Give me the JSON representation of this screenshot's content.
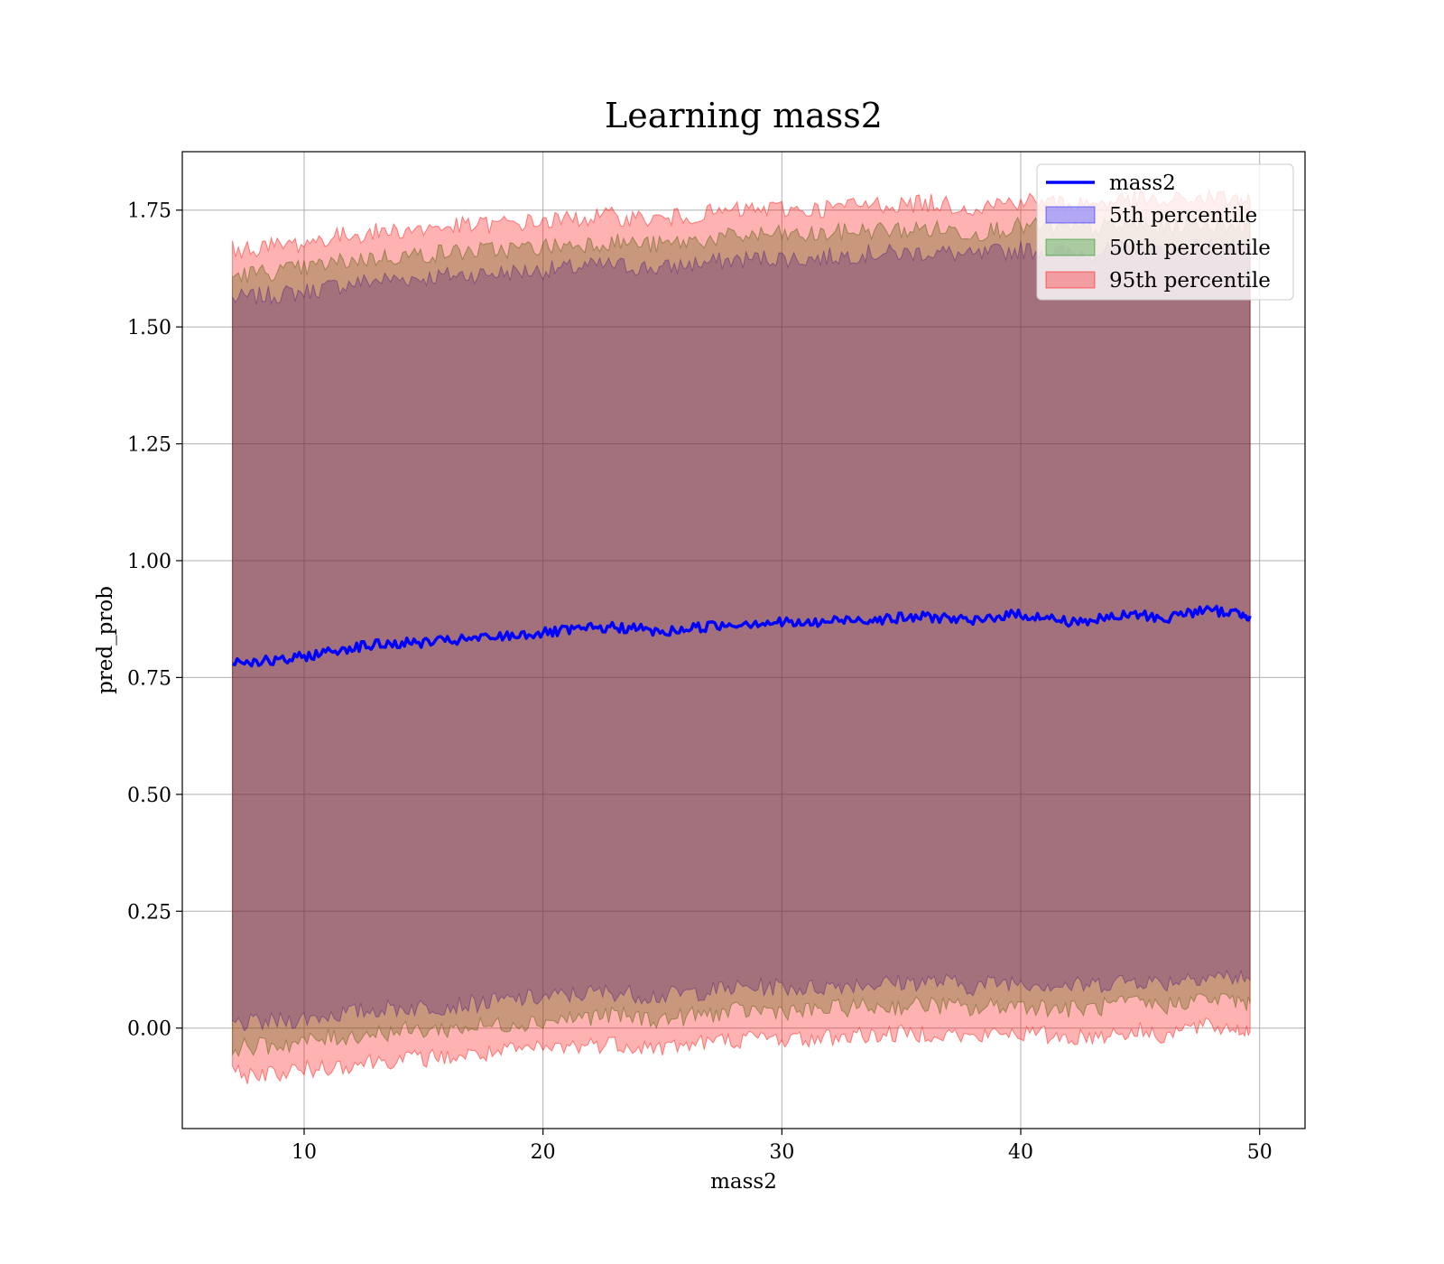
{
  "chart_data": {
    "type": "area",
    "title": "Learning mass2",
    "xlabel": "mass2",
    "ylabel": "pred_prob",
    "xlim": [
      4.9,
      51.9
    ],
    "ylim": [
      -0.215,
      1.875
    ],
    "xticks": [
      10,
      20,
      30,
      40,
      50
    ],
    "xtick_labels": [
      "10",
      "20",
      "30",
      "40",
      "50"
    ],
    "yticks": [
      0.0,
      0.25,
      0.5,
      0.75,
      1.0,
      1.25,
      1.5,
      1.75
    ],
    "ytick_labels": [
      "0.00",
      "0.25",
      "0.50",
      "0.75",
      "1.00",
      "1.25",
      "1.50",
      "1.75"
    ],
    "grid": true,
    "legend_placement": "upper right",
    "x": [
      7.0,
      8.0,
      9.0,
      10.0,
      11.0,
      12.0,
      13.0,
      14.0,
      15.0,
      16.0,
      17.0,
      18.0,
      19.0,
      20.0,
      21.0,
      22.0,
      23.0,
      24.0,
      25.0,
      26.0,
      27.0,
      28.0,
      29.0,
      30.0,
      31.0,
      32.0,
      33.0,
      34.0,
      35.0,
      36.0,
      37.0,
      38.0,
      39.0,
      40.0,
      41.0,
      42.0,
      43.0,
      44.0,
      45.0,
      46.0,
      47.0,
      48.0,
      49.0,
      49.6
    ],
    "series": [
      {
        "name": "mass2",
        "kind": "line",
        "color": "#0000ff",
        "values": [
          0.785,
          0.785,
          0.785,
          0.795,
          0.805,
          0.815,
          0.82,
          0.823,
          0.825,
          0.828,
          0.832,
          0.836,
          0.842,
          0.845,
          0.85,
          0.855,
          0.857,
          0.855,
          0.845,
          0.855,
          0.86,
          0.865,
          0.868,
          0.868,
          0.865,
          0.87,
          0.875,
          0.875,
          0.877,
          0.88,
          0.878,
          0.868,
          0.882,
          0.885,
          0.878,
          0.87,
          0.872,
          0.88,
          0.885,
          0.875,
          0.89,
          0.893,
          0.888,
          0.882
        ]
      },
      {
        "name": "5th percentile",
        "kind": "band",
        "color": "#0000ff",
        "upper": [
          1.56,
          1.565,
          1.57,
          1.575,
          1.585,
          1.593,
          1.6,
          1.603,
          1.605,
          1.61,
          1.612,
          1.615,
          1.618,
          1.621,
          1.625,
          1.63,
          1.632,
          1.628,
          1.625,
          1.633,
          1.638,
          1.643,
          1.647,
          1.648,
          1.645,
          1.65,
          1.655,
          1.658,
          1.657,
          1.66,
          1.658,
          1.65,
          1.66,
          1.665,
          1.663,
          1.658,
          1.66,
          1.665,
          1.668,
          1.66,
          1.67,
          1.672,
          1.668,
          1.665
        ],
        "lower": [
          0.01,
          0.01,
          0.015,
          0.02,
          0.028,
          0.033,
          0.04,
          0.043,
          0.045,
          0.048,
          0.052,
          0.056,
          0.062,
          0.065,
          0.07,
          0.075,
          0.077,
          0.072,
          0.068,
          0.075,
          0.08,
          0.085,
          0.088,
          0.088,
          0.085,
          0.09,
          0.095,
          0.095,
          0.097,
          0.1,
          0.098,
          0.088,
          0.098,
          0.1,
          0.095,
          0.09,
          0.092,
          0.1,
          0.103,
          0.095,
          0.11,
          0.112,
          0.108,
          0.102
        ]
      },
      {
        "name": "50th percentile",
        "kind": "band",
        "color": "#008000",
        "upper": [
          1.61,
          1.615,
          1.62,
          1.625,
          1.635,
          1.643,
          1.648,
          1.652,
          1.655,
          1.66,
          1.662,
          1.665,
          1.668,
          1.671,
          1.675,
          1.68,
          1.682,
          1.678,
          1.675,
          1.683,
          1.688,
          1.693,
          1.697,
          1.698,
          1.695,
          1.7,
          1.705,
          1.708,
          1.707,
          1.71,
          1.708,
          1.7,
          1.71,
          1.715,
          1.713,
          1.708,
          1.71,
          1.715,
          1.718,
          1.71,
          1.72,
          1.722,
          1.718,
          1.715
        ],
        "lower": [
          -0.04,
          -0.04,
          -0.035,
          -0.03,
          -0.022,
          -0.017,
          -0.01,
          -0.007,
          -0.005,
          -0.002,
          0.002,
          0.006,
          0.012,
          0.015,
          0.02,
          0.025,
          0.027,
          0.022,
          0.018,
          0.025,
          0.03,
          0.035,
          0.038,
          0.038,
          0.035,
          0.04,
          0.045,
          0.045,
          0.047,
          0.05,
          0.048,
          0.038,
          0.048,
          0.05,
          0.045,
          0.04,
          0.042,
          0.05,
          0.053,
          0.045,
          0.06,
          0.062,
          0.058,
          0.052
        ]
      },
      {
        "name": "95th percentile",
        "kind": "band",
        "color": "#ff0000",
        "upper": [
          1.665,
          1.67,
          1.675,
          1.68,
          1.69,
          1.698,
          1.703,
          1.707,
          1.71,
          1.715,
          1.717,
          1.72,
          1.723,
          1.726,
          1.73,
          1.735,
          1.737,
          1.733,
          1.73,
          1.738,
          1.743,
          1.748,
          1.752,
          1.753,
          1.75,
          1.755,
          1.76,
          1.763,
          1.762,
          1.765,
          1.763,
          1.755,
          1.765,
          1.77,
          1.768,
          1.763,
          1.765,
          1.77,
          1.773,
          1.765,
          1.775,
          1.777,
          1.773,
          1.77
        ],
        "lower": [
          -0.1,
          -0.1,
          -0.095,
          -0.09,
          -0.082,
          -0.077,
          -0.07,
          -0.067,
          -0.065,
          -0.062,
          -0.058,
          -0.054,
          -0.048,
          -0.045,
          -0.04,
          -0.035,
          -0.033,
          -0.038,
          -0.042,
          -0.035,
          -0.03,
          -0.025,
          -0.022,
          -0.022,
          -0.025,
          -0.02,
          -0.015,
          -0.015,
          -0.013,
          -0.01,
          -0.012,
          -0.022,
          -0.012,
          -0.01,
          -0.015,
          -0.02,
          -0.018,
          -0.01,
          -0.007,
          -0.015,
          0.0,
          0.002,
          -0.002,
          -0.008
        ]
      }
    ]
  }
}
